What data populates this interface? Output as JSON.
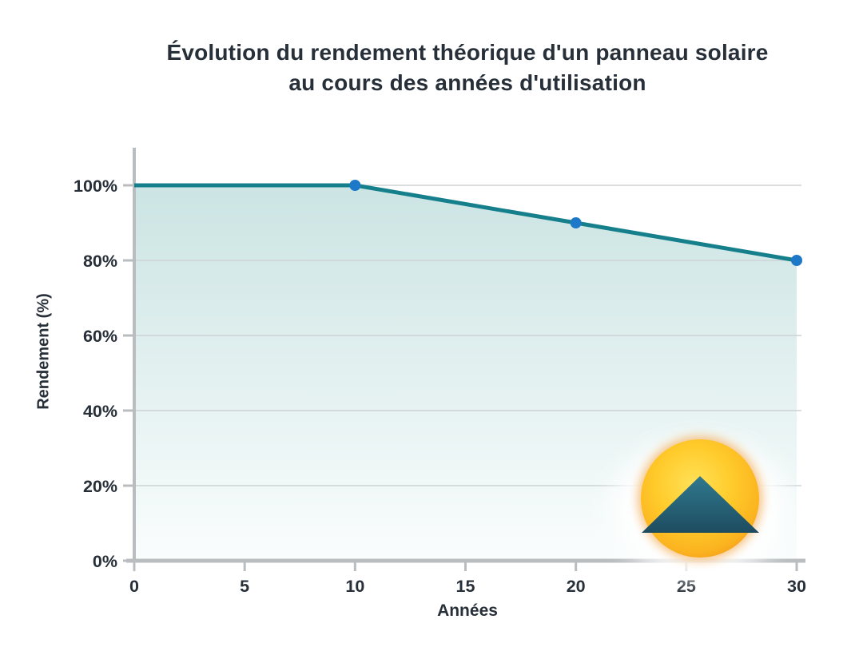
{
  "header": {
    "title_line1": "Évolution du rendement théorique d'un panneau solaire",
    "title_line2": "au cours des années d'utilisation"
  },
  "axes": {
    "x_label": "Années",
    "y_label": "Rendement (%)"
  },
  "chart_data": {
    "type": "area",
    "title": "Évolution du rendement théorique d'un panneau solaire au cours des années d'utilisation",
    "xlabel": "Années",
    "ylabel": "Rendement (%)",
    "xlim": [
      0,
      30
    ],
    "ylim": [
      0,
      100
    ],
    "x_ticks": [
      0,
      5,
      10,
      15,
      20,
      25,
      30
    ],
    "x_tick_labels": [
      "0",
      "5",
      "10",
      "15",
      "20",
      "25",
      "30"
    ],
    "y_ticks": [
      0,
      20,
      40,
      60,
      80,
      100
    ],
    "y_tick_labels": [
      "0%",
      "20%",
      "40%",
      "60%",
      "80%",
      "100%"
    ],
    "grid": true,
    "legend": false,
    "points": [
      {
        "x": 0,
        "y": 100,
        "marker": false
      },
      {
        "x": 10,
        "y": 100,
        "marker": true
      },
      {
        "x": 20,
        "y": 90,
        "marker": true
      },
      {
        "x": 30,
        "y": 80,
        "marker": true
      }
    ],
    "colors": {
      "line": "#15808C",
      "marker": "#1E78C8",
      "fill_top": "#CBE4E3",
      "fill_bottom": "#FAFDFD",
      "axis": "#B9BDC0",
      "grid": "#CDD2D5",
      "text": "#272F39"
    }
  },
  "logo": {
    "name": "sun-mountain-logo",
    "sun_center": "#FFE158",
    "sun_mid": "#FFCB2B",
    "sun_edge": "#F2921B",
    "mountain_top": "#30798F",
    "mountain_bottom": "#1E4C60"
  }
}
